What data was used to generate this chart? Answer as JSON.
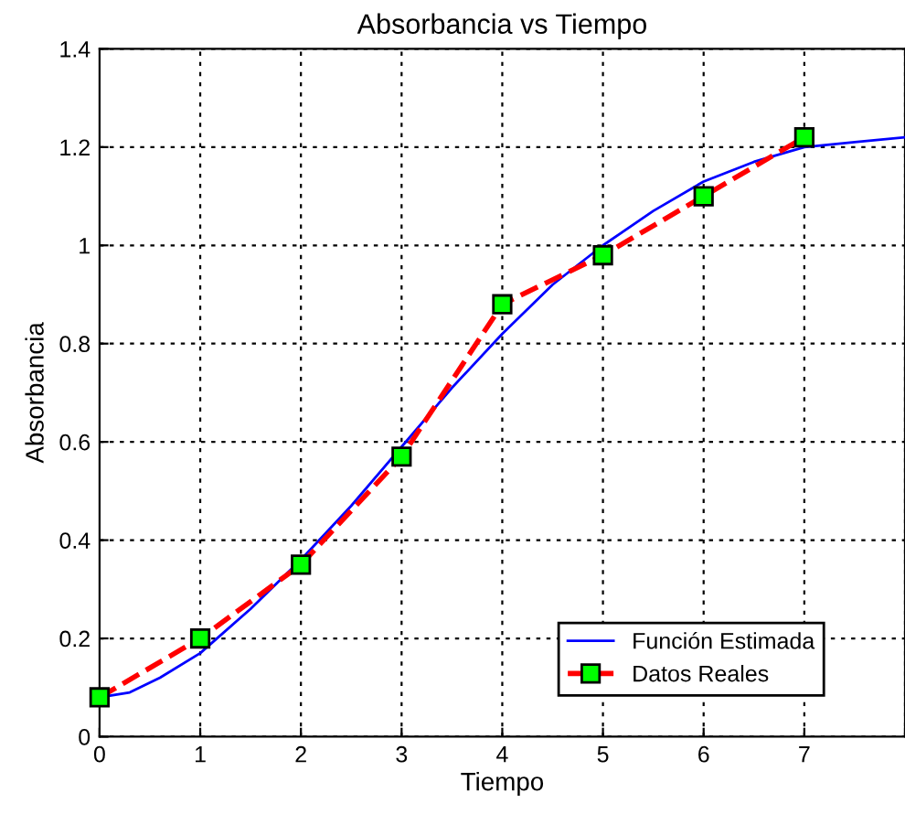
{
  "chart_data": {
    "type": "line",
    "title": "Absorbancia vs Tiempo",
    "xlabel": "Tiempo",
    "ylabel": "Absorbancia",
    "xlim": [
      0,
      8
    ],
    "xticks": [
      0,
      1,
      2,
      3,
      4,
      5,
      6,
      7,
      {
        "value": 8,
        "label": null
      }
    ],
    "ylim": [
      0,
      1.4
    ],
    "yticks": [
      0,
      0.2,
      0.4,
      0.6,
      0.8,
      1,
      1.2,
      1.4
    ],
    "grid": true,
    "legend": "bottom right",
    "series": [
      {
        "name": "Función Estimada",
        "color": "#0000ff",
        "line_style": "solid",
        "marker": "none",
        "x": [
          0,
          0.3,
          0.6,
          1,
          1.5,
          2,
          2.5,
          3,
          3.5,
          4,
          4.5,
          5,
          5.5,
          6,
          6.5,
          7,
          7.5,
          8
        ],
        "values": [
          0.08,
          0.09,
          0.12,
          0.17,
          0.26,
          0.36,
          0.47,
          0.59,
          0.71,
          0.82,
          0.92,
          1.0,
          1.07,
          1.13,
          1.17,
          1.2,
          1.21,
          1.22
        ]
      },
      {
        "name": "Datos Reales",
        "color": "#ff0000",
        "line_style": "dashed",
        "marker": "square",
        "x": [
          0,
          1,
          2,
          3,
          4,
          5,
          6,
          7
        ],
        "values": [
          0.08,
          0.2,
          0.35,
          0.57,
          0.88,
          0.98,
          1.1,
          1.22
        ]
      }
    ]
  }
}
